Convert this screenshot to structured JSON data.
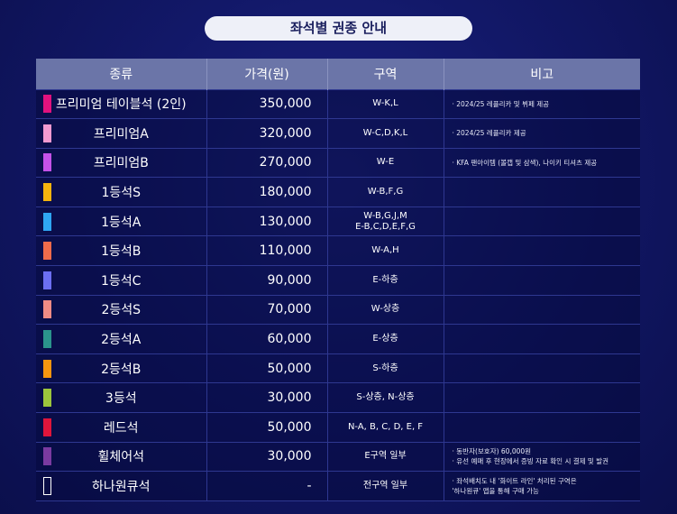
{
  "title": "좌석별 권종 안내",
  "headers": [
    "종류",
    "가격(원)",
    "구역",
    "비고"
  ],
  "rows": [
    {
      "type": "프리미엄 테이블석 (2인)",
      "color": "#e0127e",
      "price": "350,000",
      "zone": [
        "W-K,L"
      ],
      "note": [
        "· 2024/25 레플리카 및 뷔페 제공"
      ]
    },
    {
      "type": "프리미엄A",
      "color": "#f29ad0",
      "price": "320,000",
      "zone": [
        "W-C,D,K,L"
      ],
      "note": [
        "· 2024/25 레플리카 제공"
      ]
    },
    {
      "type": "프리미엄B",
      "color": "#c552e9",
      "price": "270,000",
      "zone": [
        "W-E"
      ],
      "note": [
        "· KFA 팬아이템 (볼캡 및 삼색), 나이키 티셔츠 제공"
      ]
    },
    {
      "type": "1등석S",
      "color": "#f6b40e",
      "price": "180,000",
      "zone": [
        "W-B,F,G"
      ],
      "note": []
    },
    {
      "type": "1등석A",
      "color": "#2fa6f3",
      "price": "130,000",
      "zone": [
        "W-B,G,J,M",
        "E-B,C,D,E,F,G"
      ],
      "note": []
    },
    {
      "type": "1등석B",
      "color": "#ef6b4b",
      "price": "110,000",
      "zone": [
        "W-A,H"
      ],
      "note": []
    },
    {
      "type": "1등석C",
      "color": "#6c6ff2",
      "price": "90,000",
      "zone": [
        "E-하층"
      ],
      "note": []
    },
    {
      "type": "2등석S",
      "color": "#ef8c85",
      "price": "70,000",
      "zone": [
        "W-상층"
      ],
      "note": []
    },
    {
      "type": "2등석A",
      "color": "#2b948c",
      "price": "60,000",
      "zone": [
        "E-상층"
      ],
      "note": []
    },
    {
      "type": "2등석B",
      "color": "#f7950f",
      "price": "50,000",
      "zone": [
        "S-하층"
      ],
      "note": []
    },
    {
      "type": "3등석",
      "color": "#9cc53c",
      "price": "30,000",
      "zone": [
        "S-상층, N-상층"
      ],
      "note": []
    },
    {
      "type": "레드석",
      "color": "#e0153b",
      "price": "50,000",
      "zone": [
        "N-A, B, C, D, E, F"
      ],
      "note": []
    },
    {
      "type": "휠체어석",
      "color": "#7a3aa0",
      "price": "30,000",
      "zone": [
        "E구역 일부"
      ],
      "note": [
        "· 동반자(보호자) 60,000원",
        "· 유선 예매 후 현장에서 증빙 자료 확인 시 결제 및 발권"
      ]
    },
    {
      "type": "하나원큐석",
      "color": "#ffffff",
      "outline": true,
      "price": "-",
      "zone": [
        "전구역 일부"
      ],
      "note": [
        "· 좌석배치도 내 '화이트 라인' 처리된 구역은",
        "  '하나원큐' 앱을 통해 구매 가능"
      ]
    }
  ]
}
